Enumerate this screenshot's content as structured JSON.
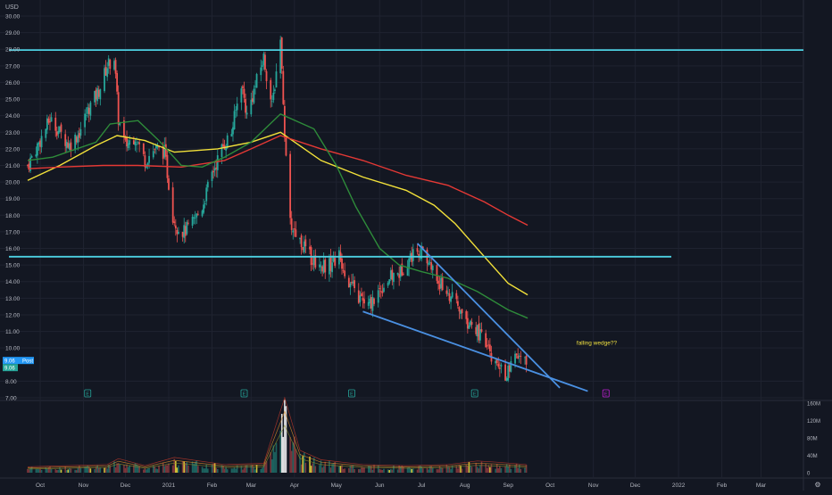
{
  "chart_data": {
    "type": "candlestick",
    "currency_label": "USD",
    "price_axis": {
      "min": 7,
      "max": 30,
      "ticks": [
        "30.00",
        "29.00",
        "28.00",
        "27.00",
        "26.00",
        "25.00",
        "24.00",
        "23.00",
        "22.00",
        "21.00",
        "20.00",
        "19.00",
        "18.00",
        "17.00",
        "16.00",
        "15.00",
        "14.00",
        "13.00",
        "12.00",
        "11.00",
        "10.00",
        "8.00",
        "7.00"
      ]
    },
    "price_badges": [
      {
        "value": "9.06",
        "tag": "Post",
        "color": "#2196f3"
      },
      {
        "value": "9.06",
        "tag": "",
        "color": "#26a69a"
      }
    ],
    "volume_axis": {
      "max_m": 160,
      "ticks": [
        "160M",
        "120M",
        "80M",
        "40M",
        "0"
      ]
    },
    "time_axis": [
      "Oct",
      "Nov",
      "Dec",
      "2021",
      "Feb",
      "Mar",
      "Apr",
      "May",
      "Jun",
      "Jul",
      "Aug",
      "Sep",
      "Oct",
      "Nov",
      "Dec",
      "2022",
      "Feb",
      "Mar"
    ],
    "horizontal_levels": [
      {
        "price": 27.95,
        "color": "#4dd0e1"
      },
      {
        "price": 15.5,
        "color": "#4dd0e1"
      }
    ],
    "wedge_lines": [
      {
        "from": [
          "2021-05-20",
          12.2
        ],
        "to": [
          "2021-10-28",
          7.4
        ],
        "color": "#4a90e2"
      },
      {
        "from": [
          "2021-06-28",
          16.3
        ],
        "to": [
          "2021-10-08",
          7.6
        ],
        "color": "#4a90e2"
      }
    ],
    "annotation": {
      "text": "falling wedge??",
      "date": "2021-10-20",
      "price": 10.2,
      "color": "#f0e040"
    },
    "moving_averages": [
      {
        "color": "#f2e13a",
        "points": [
          [
            "2020-09-22",
            20.1
          ],
          [
            "2020-10-15",
            21.0
          ],
          [
            "2020-11-10",
            22.2
          ],
          [
            "2020-11-25",
            22.8
          ],
          [
            "2020-12-15",
            22.5
          ],
          [
            "2021-01-05",
            21.8
          ],
          [
            "2021-02-05",
            22.0
          ],
          [
            "2021-03-01",
            22.4
          ],
          [
            "2021-03-22",
            23.0
          ],
          [
            "2021-04-20",
            21.3
          ],
          [
            "2021-05-20",
            20.3
          ],
          [
            "2021-06-20",
            19.5
          ],
          [
            "2021-07-10",
            18.6
          ],
          [
            "2021-07-25",
            17.5
          ],
          [
            "2021-08-15",
            15.5
          ],
          [
            "2021-09-01",
            13.9
          ],
          [
            "2021-09-15",
            13.2
          ]
        ]
      },
      {
        "color": "#e53935",
        "points": [
          [
            "2020-09-22",
            20.8
          ],
          [
            "2020-10-15",
            20.9
          ],
          [
            "2020-11-15",
            21.0
          ],
          [
            "2020-12-10",
            21.0
          ],
          [
            "2021-01-10",
            20.9
          ],
          [
            "2021-02-10",
            21.3
          ],
          [
            "2021-03-01",
            22.0
          ],
          [
            "2021-03-22",
            22.8
          ],
          [
            "2021-04-20",
            22.0
          ],
          [
            "2021-05-20",
            21.3
          ],
          [
            "2021-06-20",
            20.4
          ],
          [
            "2021-07-20",
            19.8
          ],
          [
            "2021-08-15",
            18.8
          ],
          [
            "2021-09-01",
            18.0
          ],
          [
            "2021-09-15",
            17.4
          ]
        ]
      },
      {
        "color": "#2e8b3a",
        "points": [
          [
            "2020-09-22",
            21.3
          ],
          [
            "2020-10-10",
            21.5
          ],
          [
            "2020-11-10",
            22.4
          ],
          [
            "2020-11-20",
            23.5
          ],
          [
            "2020-12-10",
            23.7
          ],
          [
            "2020-12-25",
            22.5
          ],
          [
            "2021-01-10",
            21.0
          ],
          [
            "2021-01-25",
            20.9
          ],
          [
            "2021-02-10",
            21.5
          ],
          [
            "2021-03-01",
            22.4
          ],
          [
            "2021-03-22",
            24.1
          ],
          [
            "2021-04-15",
            23.2
          ],
          [
            "2021-05-01",
            21.0
          ],
          [
            "2021-05-15",
            18.5
          ],
          [
            "2021-06-01",
            16.0
          ],
          [
            "2021-06-15",
            15.0
          ],
          [
            "2021-07-01",
            14.6
          ],
          [
            "2021-07-20",
            14.2
          ],
          [
            "2021-08-10",
            13.4
          ],
          [
            "2021-09-01",
            12.3
          ],
          [
            "2021-09-15",
            11.8
          ]
        ]
      }
    ],
    "earnings_markers": [
      {
        "date": "2020-11-04",
        "label": "E",
        "color": "#26a69a"
      },
      {
        "date": "2021-02-24",
        "label": "E",
        "color": "#26a69a"
      },
      {
        "date": "2021-05-12",
        "label": "E",
        "color": "#26a69a"
      },
      {
        "date": "2021-08-08",
        "label": "E",
        "color": "#26a69a"
      },
      {
        "date": "2021-11-10",
        "label": "E",
        "color": "#c21fd6"
      }
    ],
    "price_path": [
      [
        "2020-09-22",
        21.0
      ],
      [
        "2020-10-01",
        22.5
      ],
      [
        "2020-10-08",
        23.8
      ],
      [
        "2020-10-15",
        23.0
      ],
      [
        "2020-10-22",
        22.2
      ],
      [
        "2020-10-29",
        23.0
      ],
      [
        "2020-11-05",
        24.5
      ],
      [
        "2020-11-12",
        25.5
      ],
      [
        "2020-11-18",
        27.0
      ],
      [
        "2020-11-23",
        27.5
      ],
      [
        "2020-11-26",
        23.8
      ],
      [
        "2020-12-01",
        22.2
      ],
      [
        "2020-12-08",
        22.8
      ],
      [
        "2020-12-15",
        21.3
      ],
      [
        "2020-12-22",
        22.0
      ],
      [
        "2020-12-29",
        21.8
      ],
      [
        "2021-01-04",
        18.0
      ],
      [
        "2021-01-07",
        17.3
      ],
      [
        "2021-01-12",
        17.0
      ],
      [
        "2021-01-18",
        17.5
      ],
      [
        "2021-01-25",
        18.5
      ],
      [
        "2021-02-01",
        20.5
      ],
      [
        "2021-02-08",
        22.0
      ],
      [
        "2021-02-15",
        23.0
      ],
      [
        "2021-02-22",
        26.0
      ],
      [
        "2021-02-26",
        24.0
      ],
      [
        "2021-03-04",
        25.8
      ],
      [
        "2021-03-10",
        27.5
      ],
      [
        "2021-03-16",
        24.5
      ],
      [
        "2021-03-22",
        28.8
      ],
      [
        "2021-03-25",
        22.5
      ],
      [
        "2021-03-29",
        17.5
      ],
      [
        "2021-04-05",
        16.5
      ],
      [
        "2021-04-12",
        15.5
      ],
      [
        "2021-04-19",
        15.0
      ],
      [
        "2021-04-26",
        15.0
      ],
      [
        "2021-05-03",
        15.5
      ],
      [
        "2021-05-10",
        14.0
      ],
      [
        "2021-05-17",
        13.0
      ],
      [
        "2021-05-24",
        12.5
      ],
      [
        "2021-06-01",
        13.5
      ],
      [
        "2021-06-08",
        14.2
      ],
      [
        "2021-06-15",
        14.5
      ],
      [
        "2021-06-22",
        15.4
      ],
      [
        "2021-06-29",
        16.0
      ],
      [
        "2021-07-06",
        15.2
      ],
      [
        "2021-07-13",
        14.0
      ],
      [
        "2021-07-20",
        13.3
      ],
      [
        "2021-07-27",
        12.5
      ],
      [
        "2021-08-03",
        11.5
      ],
      [
        "2021-08-10",
        11.0
      ],
      [
        "2021-08-17",
        10.0
      ],
      [
        "2021-08-24",
        8.8
      ],
      [
        "2021-08-31",
        8.4
      ],
      [
        "2021-09-07",
        9.5
      ],
      [
        "2021-09-14",
        9.06
      ]
    ],
    "volume_path": [
      [
        "2020-09-22",
        10
      ],
      [
        "2020-11-18",
        14
      ],
      [
        "2020-11-26",
        24
      ],
      [
        "2020-12-15",
        12
      ],
      [
        "2021-01-05",
        26
      ],
      [
        "2021-02-10",
        14
      ],
      [
        "2021-03-10",
        16
      ],
      [
        "2021-03-25",
        128
      ],
      [
        "2021-04-05",
        38
      ],
      [
        "2021-04-20",
        22
      ],
      [
        "2021-05-20",
        14
      ],
      [
        "2021-06-20",
        12
      ],
      [
        "2021-07-20",
        14
      ],
      [
        "2021-08-10",
        20
      ],
      [
        "2021-08-24",
        18
      ],
      [
        "2021-09-14",
        14
      ]
    ]
  }
}
